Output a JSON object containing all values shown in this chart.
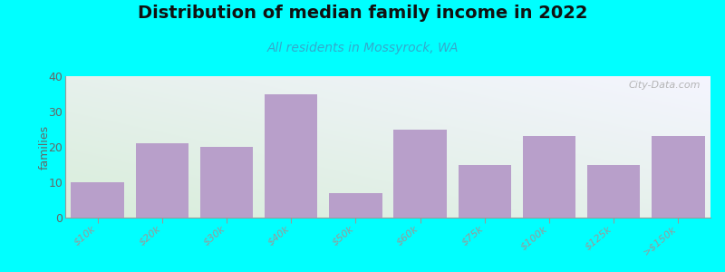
{
  "title": "Distribution of median family income in 2022",
  "subtitle": "All residents in Mossyrock, WA",
  "categories": [
    "$10k",
    "$20k",
    "$30k",
    "$40k",
    "$50k",
    "$60k",
    "$75k",
    "$100k",
    "$125k",
    ">$150k"
  ],
  "values": [
    10,
    21,
    20,
    35,
    7,
    25,
    15,
    23,
    15,
    23
  ],
  "bar_color": "#b89fca",
  "background_color": "#00ffff",
  "ylabel": "families",
  "ylim": [
    0,
    40
  ],
  "yticks": [
    0,
    10,
    20,
    30,
    40
  ],
  "title_fontsize": 14,
  "subtitle_fontsize": 10,
  "watermark": "City-Data.com",
  "grad_color_topleft": "#d8edda",
  "grad_color_right": "#f0f0f8"
}
